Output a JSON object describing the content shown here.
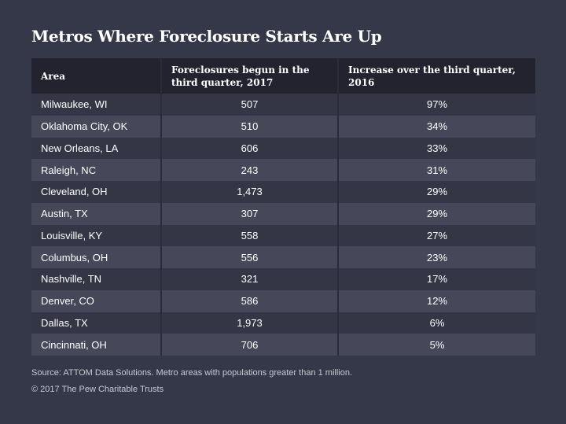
{
  "title": "Metros Where Foreclosure Starts Are Up",
  "source": "Source: ATTOM Data Solutions. Metro areas with populations greater than 1 million.",
  "credit": "© 2017 The Pew Charitable Trusts",
  "colors": {
    "background": "#353849",
    "header_background": "#22232f",
    "row_light": "#464859",
    "row_dark": "#343645"
  },
  "chart_data": {
    "type": "table",
    "title": "Metros Where Foreclosure Starts Are Up",
    "columns": [
      "Area",
      "Foreclosures begun in the third quarter, 2017",
      "Increase over the third quarter, 2016"
    ],
    "rows": [
      {
        "area": "Milwaukee, WI",
        "foreclosures": "507",
        "increase": "97%"
      },
      {
        "area": "Oklahoma City, OK",
        "foreclosures": "510",
        "increase": "34%"
      },
      {
        "area": "New Orleans, LA",
        "foreclosures": "606",
        "increase": "33%"
      },
      {
        "area": "Raleigh, NC",
        "foreclosures": "243",
        "increase": "31%"
      },
      {
        "area": "Cleveland, OH",
        "foreclosures": "1,473",
        "increase": "29%"
      },
      {
        "area": "Austin, TX",
        "foreclosures": "307",
        "increase": "29%"
      },
      {
        "area": "Louisville, KY",
        "foreclosures": "558",
        "increase": "27%"
      },
      {
        "area": "Columbus, OH",
        "foreclosures": "556",
        "increase": "23%"
      },
      {
        "area": "Nashville, TN",
        "foreclosures": "321",
        "increase": "17%"
      },
      {
        "area": "Denver, CO",
        "foreclosures": "586",
        "increase": "12%"
      },
      {
        "area": "Dallas, TX",
        "foreclosures": "1,973",
        "increase": "6%"
      },
      {
        "area": "Cincinnati, OH",
        "foreclosures": "706",
        "increase": "5%"
      }
    ]
  }
}
